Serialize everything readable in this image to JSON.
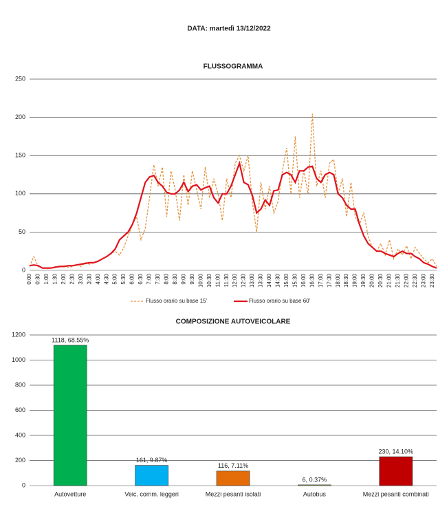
{
  "header": {
    "title": "DATA: martedì 13/12/2022"
  },
  "chart_data": [
    {
      "type": "line",
      "title": "FLUSSOGRAMMA",
      "categories": [
        "0:00",
        null,
        "0:30",
        null,
        "1:00",
        null,
        "1:30",
        null,
        "2:00",
        null,
        "2:30",
        null,
        "3:00",
        null,
        "3:30",
        null,
        "4:00",
        null,
        "4:30",
        null,
        "5:00",
        null,
        "5:30",
        null,
        "6:00",
        null,
        "6:30",
        null,
        "7:00",
        null,
        "7:30",
        null,
        "8:00",
        null,
        "8:30",
        null,
        "9:00",
        null,
        "9:30",
        null,
        "10:00",
        null,
        "10:30",
        null,
        "11:00",
        null,
        "11:30",
        null,
        "12:00",
        null,
        "12:30",
        null,
        "13:00",
        null,
        "13:30",
        null,
        "14:00",
        null,
        "14:30",
        null,
        "15:00",
        null,
        "15:30",
        null,
        "16:00",
        null,
        "16:30",
        null,
        "17:00",
        null,
        "17:30",
        null,
        "18:00",
        null,
        "18:30",
        null,
        "19:00",
        null,
        "19:30",
        null,
        "20:00",
        null,
        "20:30",
        null,
        "21:00",
        null,
        "21:30",
        null,
        "22:00",
        null,
        "22:30",
        null,
        "23:00",
        null,
        "23:30",
        null
      ],
      "series": [
        {
          "name": "Flusso orario su base 15'",
          "color": "#e3923c",
          "dashed": true,
          "width": 1.3,
          "values": [
            5,
            18,
            5,
            3,
            2,
            3,
            5,
            4,
            6,
            4,
            5,
            8,
            5,
            10,
            8,
            10,
            12,
            15,
            18,
            22,
            25,
            20,
            30,
            45,
            60,
            70,
            40,
            55,
            95,
            138,
            110,
            135,
            70,
            130,
            105,
            65,
            125,
            85,
            130,
            105,
            80,
            135,
            95,
            120,
            100,
            65,
            120,
            95,
            140,
            150,
            130,
            150,
            90,
            50,
            115,
            80,
            110,
            75,
            90,
            130,
            160,
            100,
            175,
            95,
            130,
            100,
            205,
            110,
            130,
            95,
            140,
            145,
            100,
            120,
            70,
            115,
            70,
            60,
            75,
            45,
            30,
            25,
            35,
            20,
            40,
            15,
            28,
            20,
            32,
            15,
            30,
            22,
            15,
            10,
            15,
            5
          ]
        },
        {
          "name": "Flusso orario su base 60'",
          "color": "#e0141e",
          "dashed": false,
          "width": 2.2,
          "values": [
            6,
            7,
            6,
            3,
            3,
            3,
            4,
            5,
            5,
            6,
            6,
            7,
            8,
            9,
            10,
            10,
            12,
            15,
            18,
            22,
            28,
            40,
            45,
            50,
            60,
            75,
            95,
            115,
            122,
            124,
            115,
            110,
            102,
            100,
            100,
            105,
            115,
            103,
            110,
            112,
            105,
            108,
            110,
            95,
            88,
            100,
            100,
            110,
            125,
            140,
            115,
            112,
            98,
            75,
            80,
            92,
            85,
            104,
            105,
            125,
            128,
            125,
            115,
            130,
            130,
            135,
            136,
            120,
            115,
            125,
            128,
            125,
            100,
            95,
            85,
            80,
            80,
            60,
            45,
            35,
            30,
            25,
            25,
            22,
            20,
            18,
            22,
            25,
            22,
            22,
            18,
            15,
            10,
            8,
            5,
            3
          ]
        }
      ],
      "ylim": [
        0,
        250
      ],
      "yticks": [
        0,
        50,
        100,
        150,
        200,
        250
      ],
      "grid": true
    },
    {
      "type": "bar",
      "title": "COMPOSIZIONE AUTOVEICOLARE",
      "categories": [
        "Autovetture",
        "Veic. comm. leggeri",
        "Mezzi pesanti isolati",
        "Autobus",
        "Mezzi pesanti combinati"
      ],
      "values": [
        1118,
        161,
        116,
        6,
        230
      ],
      "value_labels": [
        "1118, 68.55%",
        "161, 9.87%",
        "116, 7.11%",
        "6, 0.37%",
        "230, 14.10%"
      ],
      "colors": [
        "#00b050",
        "#00b0f0",
        "#e36c09",
        "#9bbb59",
        "#c00000"
      ],
      "ylim": [
        0,
        1200
      ],
      "yticks": [
        0,
        200,
        400,
        600,
        800,
        1000,
        1200
      ],
      "grid": true
    }
  ]
}
